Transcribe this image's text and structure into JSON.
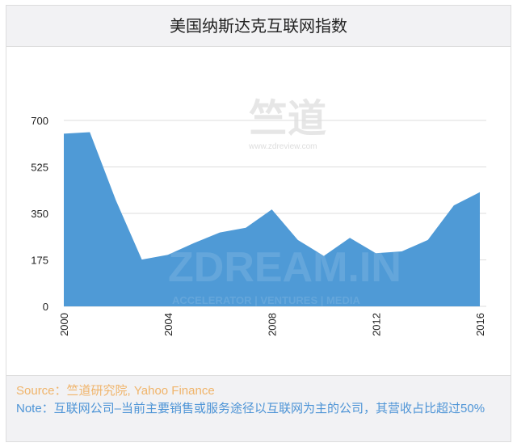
{
  "chart_data": {
    "type": "area",
    "title": "美国纳斯达克互联网指数",
    "xlabel": "",
    "ylabel": "",
    "x": [
      2000,
      2001,
      2002,
      2003,
      2004,
      2005,
      2006,
      2007,
      2008,
      2009,
      2010,
      2011,
      2012,
      2013,
      2014,
      2015,
      2016
    ],
    "values": [
      650,
      656,
      400,
      176,
      194,
      238,
      278,
      296,
      365,
      250,
      190,
      258,
      200,
      207,
      250,
      380,
      430
    ],
    "x_ticks": [
      "2000",
      "2004",
      "2008",
      "2012",
      "2016"
    ],
    "y_ticks": [
      "0",
      "175",
      "350",
      "525",
      "700"
    ],
    "ylim": [
      0,
      700
    ],
    "grid": true,
    "color": "#4f9ad6"
  },
  "watermark": {
    "logo_cn": "竺道",
    "url": "www.zdreview.com",
    "brand": "ZDREAM.IN",
    "tagline": "ACCELERATOR | VENTURES | MEDIA"
  },
  "footer": {
    "source": "Source：竺道研究院, Yahoo Finance",
    "note": "Note：互联网公司–当前主要销售或服务途径以互联网为主的公司，其营收占比超过50%"
  }
}
